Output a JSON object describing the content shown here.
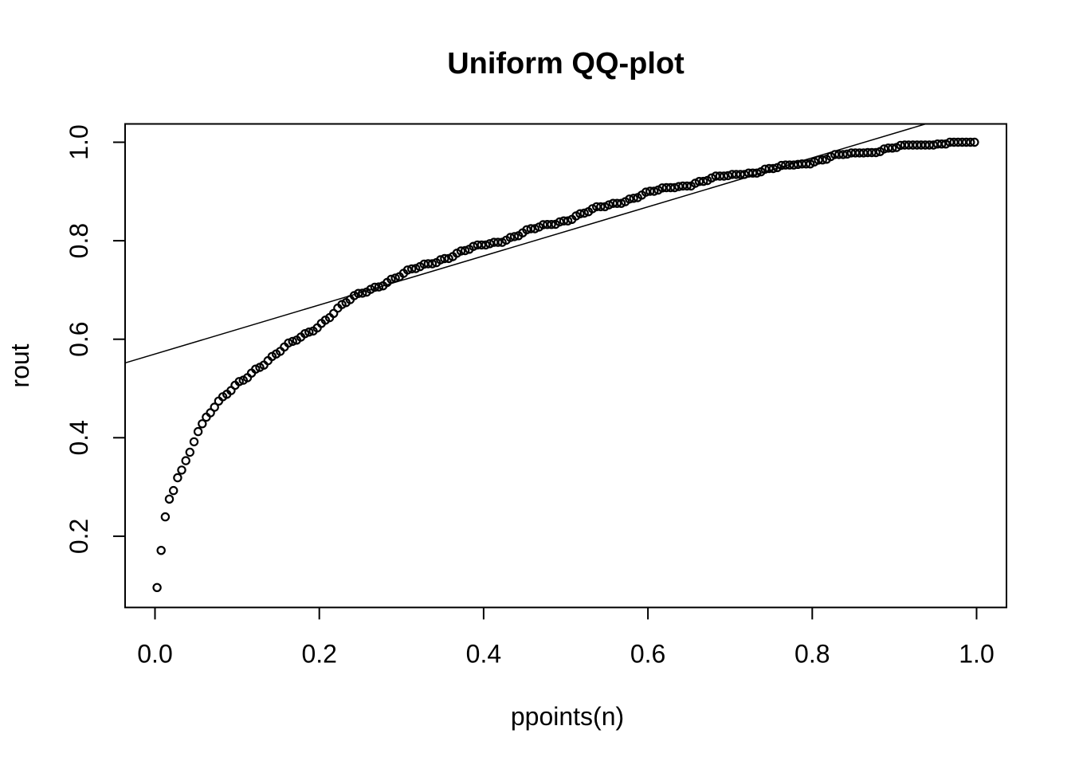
{
  "figure": {
    "background": "#ffffff",
    "foreground": "#000000"
  },
  "chart_data": {
    "type": "scatter",
    "title": "Uniform QQ-plot",
    "xlabel": "ppoints(n)",
    "ylabel": "rout",
    "grid": false,
    "legend": null,
    "marker": "open-circle",
    "marker_color": "#000000",
    "line_color": "#000000",
    "x_tick_values": [
      0.0,
      0.2,
      0.4,
      0.6,
      0.8,
      1.0
    ],
    "x_tick_labels": [
      "0.0",
      "0.2",
      "0.4",
      "0.6",
      "0.8",
      "1.0"
    ],
    "y_tick_values": [
      0.2,
      0.4,
      0.6,
      0.8,
      1.0
    ],
    "y_tick_labels": [
      "0.2",
      "0.4",
      "0.6",
      "0.8",
      "1.0"
    ],
    "xlim": [
      -0.0364,
      1.0364
    ],
    "ylim": [
      0.0553,
      1.0372
    ],
    "n_points": 200,
    "x_definition": "ppoints(n): x_i = (i - 0.5) / n, i = 1..200",
    "y_range_observed": [
      0.095,
      1.0
    ],
    "curve_anchors": [
      [
        0.0025,
        0.095
      ],
      [
        0.0075,
        0.171
      ],
      [
        0.0125,
        0.236
      ],
      [
        0.0175,
        0.27
      ],
      [
        0.0225,
        0.29
      ],
      [
        0.028,
        0.322
      ],
      [
        0.034,
        0.338
      ],
      [
        0.044,
        0.378
      ],
      [
        0.05,
        0.41
      ],
      [
        0.057,
        0.428
      ],
      [
        0.064,
        0.447
      ],
      [
        0.073,
        0.464
      ],
      [
        0.083,
        0.48
      ],
      [
        0.093,
        0.495
      ],
      [
        0.102,
        0.51
      ],
      [
        0.112,
        0.524
      ],
      [
        0.125,
        0.544
      ],
      [
        0.141,
        0.562
      ],
      [
        0.155,
        0.579
      ],
      [
        0.17,
        0.595
      ],
      [
        0.185,
        0.612
      ],
      [
        0.2,
        0.63
      ],
      [
        0.22,
        0.658
      ],
      [
        0.24,
        0.682
      ],
      [
        0.26,
        0.7
      ],
      [
        0.283,
        0.718
      ],
      [
        0.315,
        0.741
      ],
      [
        0.348,
        0.763
      ],
      [
        0.385,
        0.783
      ],
      [
        0.42,
        0.8
      ],
      [
        0.46,
        0.822
      ],
      [
        0.505,
        0.846
      ],
      [
        0.545,
        0.868
      ],
      [
        0.59,
        0.892
      ],
      [
        0.635,
        0.91
      ],
      [
        0.68,
        0.925
      ],
      [
        0.716,
        0.937
      ],
      [
        0.75,
        0.944
      ],
      [
        0.782,
        0.955
      ],
      [
        0.834,
        0.972
      ],
      [
        0.88,
        0.983
      ],
      [
        0.922,
        0.992
      ],
      [
        0.962,
        0.998
      ],
      [
        0.9975,
        1.0
      ]
    ],
    "reference_line": {
      "slope": 0.498,
      "intercept": 0.57
    }
  }
}
